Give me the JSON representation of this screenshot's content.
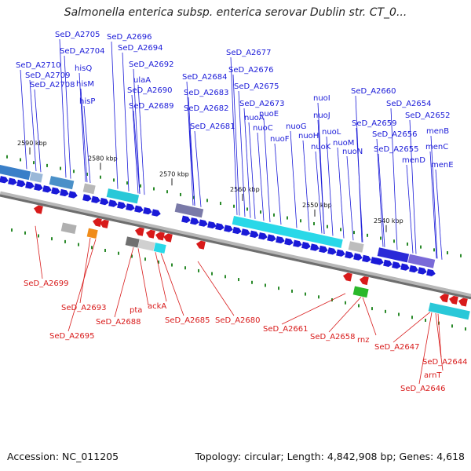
{
  "title": "Salmonella enterica subsp. enterica serovar Dublin str. CT_0...",
  "footer": {
    "accession": "Accession: NC_011205",
    "topology": "Topology: circular; Length: 4,842,908 bp; Genes: 4,618"
  },
  "colors": {
    "forward": "#1a1ad8",
    "reverse": "#d81a1a",
    "backbone": "#8a8a8a",
    "cyan": "#29d8e8",
    "green_tick": "#2a8a2a"
  },
  "ticks": [
    "2590 kbp",
    "2580 kbp",
    "2570 kbp",
    "2560 kbp",
    "2550 kbp",
    "2540 kbp"
  ],
  "forward_labels": [
    "SeD_A2705",
    "SeD_A2704",
    "SeD_A2710",
    "SeD_A2709",
    "SeD_A2708",
    "hisQ",
    "hisM",
    "hisP",
    "SeD_A2696",
    "SeD_A2694",
    "SeD_A2692",
    "ulaA",
    "SeD_A2690",
    "SeD_A2689",
    "SeD_A2684",
    "SeD_A2683",
    "SeD_A2682",
    "SeD_A2681",
    "SeD_A2677",
    "SeD_A2676",
    "SeD_A2675",
    "SeD_A2673",
    "nuoA",
    "nuoC",
    "nuoE",
    "nuoF",
    "nuoG",
    "nuoI",
    "nuoJ",
    "nuoH",
    "nuoK",
    "nuoL",
    "nuoM",
    "nuoN",
    "SeD_A2660",
    "SeD_A2659",
    "SeD_A2654",
    "SeD_A2652",
    "SeD_A2656",
    "SeD_A2655",
    "menB",
    "menC",
    "menD",
    "menE"
  ],
  "reverse_labels": [
    "SeD_A2699",
    "SeD_A2693",
    "SeD_A2695",
    "pta",
    "ackA",
    "SeD_A2688",
    "SeD_A2685",
    "SeD_A2680",
    "SeD_A2661",
    "SeD_A2658",
    "rnz",
    "SeD_A2647",
    "SeD_A2644",
    "arnT",
    "SeD_A2646"
  ]
}
